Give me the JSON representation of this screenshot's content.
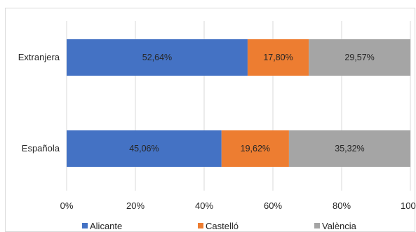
{
  "chart_data": {
    "type": "bar",
    "orientation": "horizontal",
    "stacked": "percent",
    "categories": [
      "Extranjera",
      "Española"
    ],
    "series": [
      {
        "name": "Alicante",
        "color": "#4472C4",
        "values": [
          52.64,
          45.06
        ],
        "labels": [
          "52,64%",
          "45,06%"
        ]
      },
      {
        "name": "Castelló",
        "color": "#ED7D31",
        "values": [
          17.8,
          19.62
        ],
        "labels": [
          "17,80%",
          "19,62%"
        ]
      },
      {
        "name": "València",
        "color": "#A5A5A5",
        "values": [
          29.57,
          35.32
        ],
        "labels": [
          "29,57%",
          "35,32%"
        ]
      }
    ],
    "xlim": [
      0,
      100
    ],
    "xticks": [
      "0%",
      "20%",
      "40%",
      "60%",
      "80%",
      "100%"
    ],
    "grid": true,
    "legend": "bottom"
  }
}
